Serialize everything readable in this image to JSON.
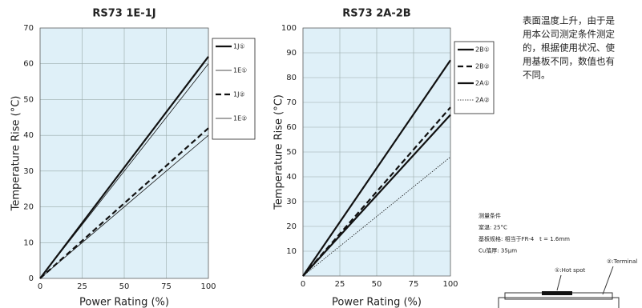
{
  "chart_data": [
    {
      "type": "line",
      "title": "RS73 1E-1J",
      "x_label": "Power Rating (%)",
      "y_label": "Temperature Rise (°C)",
      "x": [
        0,
        100
      ],
      "xlim": [
        0,
        100
      ],
      "xticks": [
        0,
        25,
        50,
        75,
        100
      ],
      "ylim": [
        0,
        70
      ],
      "yticks": [
        0,
        10,
        20,
        30,
        40,
        50,
        60,
        70
      ],
      "grid": true,
      "series": [
        {
          "name": "1J①",
          "color": "#111111",
          "weight": "thick",
          "dash": "solid",
          "values": [
            0,
            62
          ]
        },
        {
          "name": "1E①",
          "color": "#111111",
          "weight": "thin",
          "dash": "solid",
          "values": [
            0,
            60
          ]
        },
        {
          "name": "1J②",
          "color": "#111111",
          "weight": "thick",
          "dash": "dashed",
          "values": [
            0,
            42
          ]
        },
        {
          "name": "1E②",
          "color": "#111111",
          "weight": "thin",
          "dash": "solid",
          "values": [
            0,
            40
          ]
        }
      ]
    },
    {
      "type": "line",
      "title": "RS73 2A-2B",
      "x_label": "Power Rating (%)",
      "y_label": "Temperature Rise (°C)",
      "x": [
        0,
        100
      ],
      "xlim": [
        0,
        100
      ],
      "xticks": [
        0,
        25,
        50,
        75,
        100
      ],
      "ylim": [
        0,
        100
      ],
      "yticks": [
        10,
        20,
        30,
        40,
        50,
        60,
        70,
        80,
        90,
        100
      ],
      "grid": true,
      "series": [
        {
          "name": "2B①",
          "color": "#111111",
          "weight": "thick",
          "dash": "solid",
          "values": [
            0,
            87
          ]
        },
        {
          "name": "2B②",
          "color": "#111111",
          "weight": "thick",
          "dash": "dashed",
          "values": [
            0,
            68
          ]
        },
        {
          "name": "2A①",
          "color": "#111111",
          "weight": "thick",
          "dash": "solid",
          "values": [
            0,
            65
          ]
        },
        {
          "name": "2A②",
          "color": "#111111",
          "weight": "thin",
          "dash": "dotted",
          "values": [
            0,
            48
          ]
        }
      ]
    }
  ],
  "note": [
    "表面温度上升，由于是",
    "用本公司测定条件测定",
    "的，根据使用状况、使",
    "用基板不同，数值也有",
    "不同。"
  ],
  "conditions": [
    "测量条件",
    "室温: 25°C",
    "基板规格: 相当于FR-4　t = 1.6mm",
    "Cu箔厚: 35μm"
  ],
  "diagram": {
    "hot_spot": "①:Hot spot",
    "terminal": "②:Terminal"
  }
}
